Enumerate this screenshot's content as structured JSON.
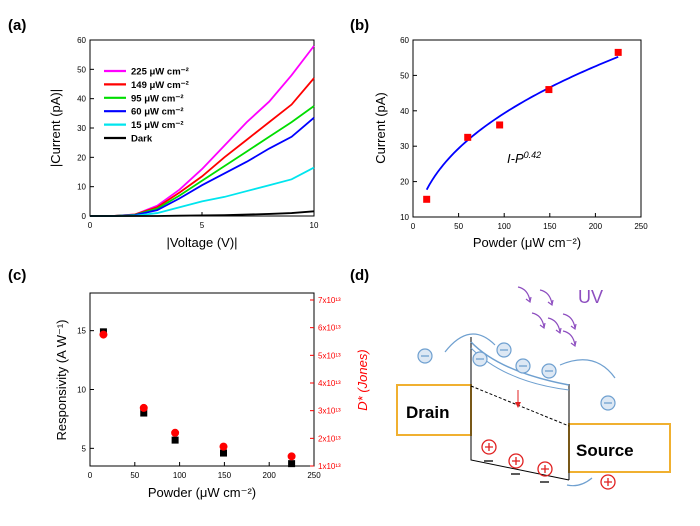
{
  "panels": {
    "a": "(a)",
    "b": "(b)",
    "c": "(c)",
    "d": "(d)"
  },
  "chart_data": [
    {
      "id": "a",
      "type": "line",
      "xlabel": "|Voltage (V)|",
      "ylabel": "|Current (pA)|",
      "xlim": [
        0,
        10
      ],
      "ylim": [
        0,
        60
      ],
      "xticks": [
        "0",
        "5",
        "10"
      ],
      "yticks": [
        "0",
        "10",
        "20",
        "30",
        "40",
        "50",
        "60"
      ],
      "legend_position": "top-left",
      "x": [
        0,
        1,
        2,
        3,
        4,
        5,
        6,
        7,
        8,
        9,
        10
      ],
      "series": [
        {
          "name": "225  μW cm⁻²",
          "color": "#ff00ff",
          "values": [
            0,
            0,
            0.5,
            3.5,
            9,
            16,
            24,
            32,
            39,
            48,
            58
          ]
        },
        {
          "name": "149  μW cm⁻²",
          "color": "#ff0000",
          "values": [
            0,
            0,
            0.5,
            3,
            8,
            13.5,
            20,
            26,
            32,
            38,
            47
          ]
        },
        {
          "name": "95 μW cm⁻²",
          "color": "#00dd00",
          "values": [
            0,
            0,
            0.4,
            2.5,
            7,
            12,
            17,
            22,
            27,
            32,
            37.5
          ]
        },
        {
          "name": "60 μW cm⁻²",
          "color": "#0000ff",
          "values": [
            0,
            0,
            0.3,
            2,
            6,
            10.5,
            14.5,
            18.5,
            23,
            27,
            33.5
          ]
        },
        {
          "name": "15 μW cm⁻²",
          "color": "#00e5ee",
          "values": [
            0,
            0,
            0.1,
            1,
            3,
            5,
            6.5,
            8.5,
            10.5,
            12.5,
            16.5
          ]
        },
        {
          "name": "Dark",
          "color": "#000000",
          "values": [
            0,
            0,
            0,
            0,
            0.1,
            0.2,
            0.3,
            0.5,
            0.7,
            1,
            1.6
          ]
        }
      ]
    },
    {
      "id": "b",
      "type": "scatter",
      "xlabel": "Powder (μW cm⁻²)",
      "ylabel": "Current (pA)",
      "xlim": [
        0,
        250
      ],
      "ylim": [
        10,
        60
      ],
      "xticks": [
        "0",
        "50",
        "100",
        "150",
        "200",
        "250"
      ],
      "yticks": [
        "10",
        "20",
        "30",
        "40",
        "50",
        "60"
      ],
      "annotation": "I-P",
      "annotation_exp": "0.42",
      "points": {
        "x": [
          15,
          60,
          95,
          149,
          225
        ],
        "y": [
          15,
          32.5,
          36,
          46,
          56.5
        ]
      },
      "fit": {
        "exponent": 0.42,
        "prefactor": 5.68,
        "color": "#0000ff"
      },
      "point_color": "#ff0000"
    },
    {
      "id": "c",
      "type": "scatter",
      "xlabel": "Powder (μW cm⁻²)",
      "ylabel": "Responsivity (A W⁻¹)",
      "ylabel2": "D* (Jones)",
      "xlim": [
        0,
        250
      ],
      "ylim": [
        3.5,
        18.2
      ],
      "y2lim": [
        1,
        7
      ],
      "xticks": [
        "0",
        "50",
        "100",
        "150",
        "200",
        "250"
      ],
      "yticks": [
        "5",
        "10",
        "15"
      ],
      "y2ticks": [
        "1x10¹³",
        "2x10¹³",
        "3x10¹³",
        "4x10¹³",
        "5x10¹³",
        "6x10¹³",
        "7x10¹³"
      ],
      "x": [
        15,
        60,
        95,
        149,
        225
      ],
      "responsivity": [
        14.9,
        8.0,
        5.7,
        4.6,
        3.7
      ],
      "detectivity": [
        5.75,
        3.1,
        2.2,
        1.7,
        1.35
      ],
      "resp_color": "#000000",
      "det_color": "#ff0000"
    }
  ],
  "diagram": {
    "uv_label": "UV",
    "drain_label": "Drain",
    "source_label": "Source",
    "colors": {
      "uv": "#8e4fc0",
      "electron": "#6fa0d0",
      "hole": "#e02020",
      "box": "#f0b030"
    }
  }
}
